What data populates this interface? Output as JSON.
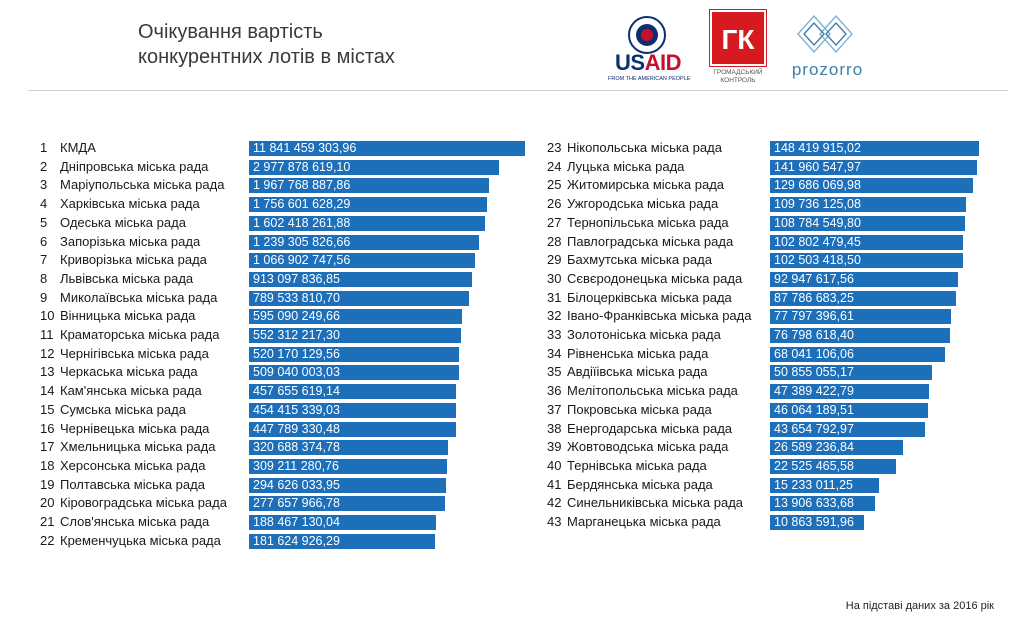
{
  "header": {
    "title_line1": "Очікування вартість",
    "title_line2": "конкурентних лотів в містах"
  },
  "logos": {
    "usaid_part1": "US",
    "usaid_part2": "AID",
    "usaid_sub": "FROM THE AMERICAN PEOPLE",
    "gk_mark": "ГК",
    "gk_caption1": "Громадський",
    "gk_caption2": "контроль",
    "prozorro": "prozorro"
  },
  "footnote": "На підставі даних за 2016 рік",
  "colors": {
    "bar": "#1d6fba",
    "usaid_blue": "#0d2f6e",
    "usaid_red": "#c8102e",
    "gk_red": "#d71920",
    "prozorro": "#3d7fa8"
  },
  "chart_data": {
    "type": "bar",
    "orientation": "horizontal",
    "title": "Очікування вартість конкурентних лотів в містах",
    "columns": 2,
    "rows": [
      {
        "rank": "1",
        "name": "КМДА",
        "label": "11 841 459 303,96",
        "value": 11841459303.96
      },
      {
        "rank": "2",
        "name": "Дніпровська міська рада",
        "label": "2 977 878 619,10",
        "value": 2977878619.1
      },
      {
        "rank": "3",
        "name": "Маріупольська міська рада",
        "label": "1 967 768 887,86",
        "value": 1967768887.86
      },
      {
        "rank": "4",
        "name": "Харківська міська рада",
        "label": "1 756 601 628,29",
        "value": 1756601628.29
      },
      {
        "rank": "5",
        "name": "Одеська міська рада",
        "label": "1 602 418 261,88",
        "value": 1602418261.88
      },
      {
        "rank": "6",
        "name": "Запорізька міська рада",
        "label": "1 239 305 826,66",
        "value": 1239305826.66
      },
      {
        "rank": "7",
        "name": "Криворізька міська рада",
        "label": "1 066 902 747,56",
        "value": 1066902747.56
      },
      {
        "rank": "8",
        "name": "Львівська міська рада",
        "label": "913 097 836,85",
        "value": 913097836.85
      },
      {
        "rank": "9",
        "name": "Миколаївська міська рада",
        "label": "789 533 810,70",
        "value": 789533810.7
      },
      {
        "rank": "10",
        "name": "Вінницька міська рада",
        "label": "595 090 249,66",
        "value": 595090249.66
      },
      {
        "rank": "11",
        "name": "Краматорська міська рада",
        "label": "552 312 217,30",
        "value": 552312217.3
      },
      {
        "rank": "12",
        "name": "Чернігівська міська рада",
        "label": "520 170 129,56",
        "value": 520170129.56
      },
      {
        "rank": "13",
        "name": "Черкаська міська рада",
        "label": "509 040 003,03",
        "value": 509040003.03
      },
      {
        "rank": "14",
        "name": "Кам'янська міська рада",
        "label": "457 655 619,14",
        "value": 457655619.14
      },
      {
        "rank": "15",
        "name": "Сумська міська рада",
        "label": "454 415 339,03",
        "value": 454415339.03
      },
      {
        "rank": "16",
        "name": "Чернівецька міська рада",
        "label": "447 789 330,48",
        "value": 447789330.48
      },
      {
        "rank": "17",
        "name": "Хмельницька міська рада",
        "label": "320 688 374,78",
        "value": 320688374.78
      },
      {
        "rank": "18",
        "name": "Херсонська міська рада",
        "label": "309 211 280,76",
        "value": 309211280.76
      },
      {
        "rank": "19",
        "name": "Полтавська міська рада",
        "label": "294 626 033,95",
        "value": 294626033.95
      },
      {
        "rank": "20",
        "name": "Кіровоградська міська рада",
        "label": "277 657 966,78",
        "value": 277657966.78
      },
      {
        "rank": "21",
        "name": "Слов'янська міська рада",
        "label": "188 467 130,04",
        "value": 188467130.04
      },
      {
        "rank": "22",
        "name": "Кременчуцька міська рада",
        "label": "181 624 926,29",
        "value": 181624926.29
      },
      {
        "rank": "23",
        "name": "Нікопольська міська рада",
        "label": "148 419 915,02",
        "value": 148419915.02
      },
      {
        "rank": "24",
        "name": "Луцька міська рада",
        "label": "141 960 547,97",
        "value": 141960547.97
      },
      {
        "rank": "25",
        "name": "Житомирська міська рада",
        "label": "129 686 069,98",
        "value": 129686069.98
      },
      {
        "rank": "26",
        "name": "Ужгородська міська рада",
        "label": "109 736 125,08",
        "value": 109736125.08
      },
      {
        "rank": "27",
        "name": "Тернопільська міська рада",
        "label": "108 784 549,80",
        "value": 108784549.8
      },
      {
        "rank": "28",
        "name": "Павлоградська міська рада",
        "label": "102 802 479,45",
        "value": 102802479.45
      },
      {
        "rank": "29",
        "name": "Бахмутська міська рада",
        "label": "102 503 418,50",
        "value": 102503418.5
      },
      {
        "rank": "30",
        "name": "Сєвєродонецька міська рада",
        "label": "92 947 617,56",
        "value": 92947617.56
      },
      {
        "rank": "31",
        "name": "Білоцерківська міська рада",
        "label": "87 786 683,25",
        "value": 87786683.25
      },
      {
        "rank": "32",
        "name": "Івано-Франківська міська рада",
        "label": "77 797 396,61",
        "value": 77797396.61
      },
      {
        "rank": "33",
        "name": "Золотоніська міська рада",
        "label": "76 798 618,40",
        "value": 76798618.4
      },
      {
        "rank": "34",
        "name": "Рівненська міська рада",
        "label": "68 041 106,06",
        "value": 68041106.06
      },
      {
        "rank": "35",
        "name": "Авдіїівська міська рада",
        "label": "50 855 055,17",
        "value": 50855055.17
      },
      {
        "rank": "36",
        "name": "Мелітопольська міська рада",
        "label": "47 389 422,79",
        "value": 47389422.79
      },
      {
        "rank": "37",
        "name": "Покровська міська рада",
        "label": "46 064 189,51",
        "value": 46064189.51
      },
      {
        "rank": "38",
        "name": "Енергодарська міська рада",
        "label": "43 654 792,97",
        "value": 43654792.97
      },
      {
        "rank": "39",
        "name": "Жовтоводська міська рада",
        "label": "26 589 236,84",
        "value": 26589236.84
      },
      {
        "rank": "40",
        "name": "Тернівська міська рада",
        "label": "22 525 465,58",
        "value": 22525465.58
      },
      {
        "rank": "41",
        "name": "Бердянська міська рада",
        "label": "15 233 011,25",
        "value": 15233011.25
      },
      {
        "rank": "42",
        "name": "Синельниківська міська рада",
        "label": "13 906 633,68",
        "value": 13906633.68
      },
      {
        "rank": "43",
        "name": "Марганецька міська рада",
        "label": "10 863 591,96",
        "value": 10863591.96
      }
    ]
  }
}
